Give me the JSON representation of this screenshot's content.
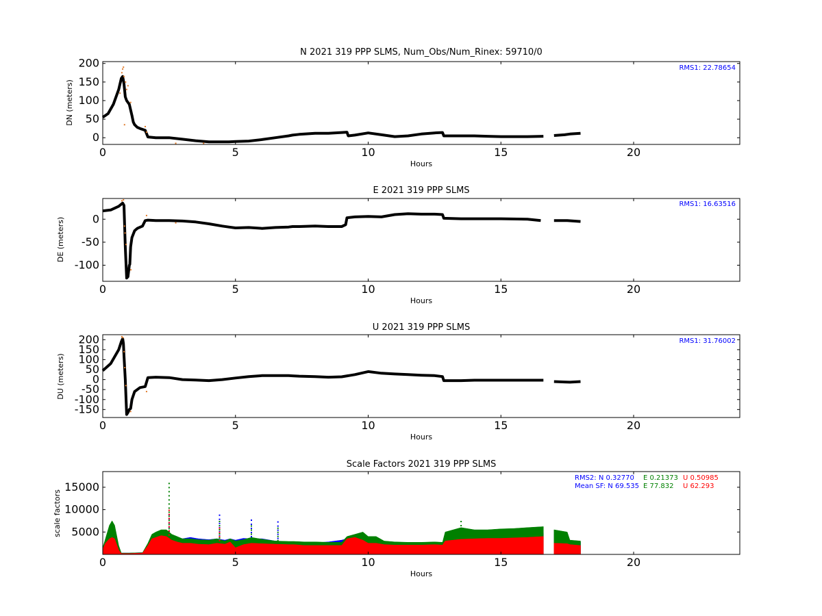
{
  "figure": {
    "background": "#ffffff"
  },
  "chart_data": [
    {
      "type": "scatter",
      "title": "N 2021 319 PPP  SLMS, Num_Obs/Num_Rinex: 59710/0",
      "xlabel": "Hours",
      "ylabel": "DN (meters)",
      "xlim": [
        0,
        24
      ],
      "ylim": [
        -18,
        205
      ],
      "xticks": [
        0,
        5,
        10,
        15,
        20
      ],
      "yticks": [
        0,
        50,
        100,
        150,
        200
      ],
      "annotations": [
        {
          "text": "RMS1: 22.78654",
          "color": "#0000ff"
        }
      ],
      "series": [
        {
          "role": "position",
          "color": "#000000",
          "x": [
            0,
            0.2,
            0.4,
            0.6,
            0.7,
            0.75,
            0.8,
            0.85,
            0.9,
            1.0,
            1.1,
            1.15,
            1.2,
            1.3,
            1.4,
            1.6,
            1.7,
            2.0,
            2.5,
            3.0,
            3.5,
            4.0,
            4.5,
            4.75,
            5.0,
            5.5,
            6.0,
            6.5,
            7.0,
            7.15,
            7.4,
            8.0,
            8.5,
            9.0,
            9.2,
            9.25,
            9.5,
            10.0,
            10.5,
            11.0,
            11.5,
            12.0,
            12.5,
            12.8,
            12.85,
            13.5,
            14.0,
            14.5,
            15.0,
            15.5,
            16.0,
            16.6,
            16.7,
            17.0,
            17.4,
            17.6,
            18.0
          ],
          "y": [
            55,
            65,
            90,
            130,
            160,
            165,
            145,
            110,
            100,
            90,
            60,
            42,
            35,
            28,
            25,
            20,
            2,
            0,
            0,
            -4,
            -8,
            -11,
            -11,
            -11,
            -10,
            -9,
            -5,
            0,
            5,
            7,
            9,
            12,
            12,
            14,
            15,
            5,
            7,
            13,
            8,
            3,
            5,
            10,
            13,
            14,
            5,
            5,
            5,
            4,
            3,
            3,
            3,
            4,
            null,
            6,
            8,
            10,
            12
          ]
        },
        {
          "role": "outliers",
          "color": "#e07a2a",
          "x": [
            0.65,
            0.72,
            0.75,
            0.78,
            0.8,
            0.82,
            0.86,
            0.9,
            0.95,
            1.05,
            1.6,
            1.65,
            2.75,
            3.8
          ],
          "y": [
            120,
            175,
            185,
            190,
            165,
            35,
            150,
            130,
            140,
            95,
            30,
            15,
            -15,
            -15
          ]
        }
      ]
    },
    {
      "type": "scatter",
      "title": "E 2021 319 PPP  SLMS",
      "xlabel": "Hours",
      "ylabel": "DE (meters)",
      "xlim": [
        0,
        24
      ],
      "ylim": [
        -135,
        45
      ],
      "xticks": [
        0,
        5,
        10,
        15,
        20
      ],
      "yticks": [
        -100,
        -50,
        0
      ],
      "annotations": [
        {
          "text": "RMS1: 16.63516",
          "color": "#0000ff"
        }
      ],
      "series": [
        {
          "role": "position",
          "color": "#000000",
          "x": [
            0,
            0.3,
            0.6,
            0.75,
            0.8,
            0.85,
            0.9,
            0.95,
            1.0,
            1.02,
            1.05,
            1.1,
            1.2,
            1.3,
            1.5,
            1.6,
            1.7,
            2.0,
            2.5,
            3.0,
            3.5,
            4.0,
            4.5,
            4.75,
            5.0,
            5.5,
            6.0,
            6.5,
            7.0,
            7.15,
            7.4,
            8.0,
            8.5,
            9.0,
            9.15,
            9.2,
            9.5,
            10.0,
            10.5,
            11.0,
            11.5,
            12.0,
            12.5,
            12.8,
            12.85,
            13.5,
            14.0,
            15.0,
            16.0,
            16.5,
            16.7,
            17.0,
            17.5,
            18.0
          ],
          "y": [
            18,
            20,
            28,
            35,
            30,
            -60,
            -128,
            -125,
            -100,
            -98,
            -60,
            -40,
            -25,
            -20,
            -15,
            -3,
            -2,
            -3,
            -3,
            -4,
            -6,
            -10,
            -15,
            -17,
            -19,
            -18,
            -20,
            -18,
            -17,
            -16,
            -16,
            -15,
            -16,
            -16,
            -12,
            3,
            5,
            6,
            5,
            10,
            12,
            11,
            11,
            10,
            2,
            1,
            1,
            1,
            0,
            -3,
            null,
            -3,
            -3,
            -5
          ]
        },
        {
          "role": "outliers",
          "color": "#e07a2a",
          "x": [
            0.72,
            0.78,
            0.82,
            0.84,
            0.88,
            1.06,
            1.65,
            2.75
          ],
          "y": [
            40,
            42,
            -15,
            -30,
            -55,
            -110,
            8,
            -8
          ]
        }
      ]
    },
    {
      "type": "scatter",
      "title": "U 2021 319 PPP  SLMS",
      "xlabel": "Hours",
      "ylabel": "DU (meters)",
      "xlim": [
        0,
        24
      ],
      "ylim": [
        -190,
        225
      ],
      "xticks": [
        0,
        5,
        10,
        15,
        20
      ],
      "yticks": [
        -150,
        -100,
        -50,
        0,
        50,
        100,
        150,
        200
      ],
      "annotations": [
        {
          "text": "RMS1: 31.76002",
          "color": "#0000ff"
        }
      ],
      "series": [
        {
          "role": "position",
          "color": "#000000",
          "x": [
            0,
            0.3,
            0.6,
            0.7,
            0.75,
            0.78,
            0.8,
            0.85,
            0.9,
            0.95,
            1.0,
            1.05,
            1.1,
            1.2,
            1.4,
            1.6,
            1.7,
            2.0,
            2.5,
            3.0,
            3.5,
            4.0,
            4.5,
            5.0,
            5.5,
            6.0,
            6.5,
            7.0,
            7.15,
            7.4,
            8.0,
            8.5,
            9.0,
            9.5,
            10.0,
            10.5,
            11.0,
            11.5,
            12.0,
            12.5,
            12.8,
            12.85,
            13.5,
            14.0,
            15.0,
            16.0,
            16.6,
            16.7,
            17.0,
            17.4,
            17.6,
            18.0
          ],
          "y": [
            45,
            80,
            150,
            190,
            205,
            180,
            120,
            0,
            -175,
            -165,
            -150,
            -145,
            -100,
            -60,
            -40,
            -35,
            10,
            12,
            10,
            0,
            -2,
            -5,
            0,
            8,
            15,
            20,
            20,
            20,
            19,
            17,
            15,
            12,
            14,
            25,
            40,
            32,
            28,
            25,
            22,
            20,
            15,
            -5,
            -5,
            -3,
            -3,
            -3,
            -3,
            null,
            -10,
            -12,
            -13,
            -10
          ]
        },
        {
          "role": "outliers",
          "color": "#e07a2a",
          "x": [
            0.72,
            0.76,
            0.8,
            0.83,
            0.87,
            1.05,
            1.65
          ],
          "y": [
            215,
            210,
            140,
            60,
            -30,
            -160,
            -60
          ]
        }
      ]
    },
    {
      "type": "scatter",
      "title": "Scale Factors 2021 319 PPP  SLMS",
      "xlabel": "Hours",
      "ylabel": "scale factors",
      "xlim": [
        0,
        24
      ],
      "ylim": [
        0,
        18500
      ],
      "xticks": [
        0,
        5,
        10,
        15,
        20
      ],
      "yticks": [
        5000,
        10000,
        15000
      ],
      "annotations": [
        {
          "text": "RMS2: N  0.32770",
          "color": "#0000ff"
        },
        {
          "text": "E  0.21373",
          "color": "#008000"
        },
        {
          "text": "U  0.50985",
          "color": "#ff0000"
        },
        {
          "text": "Mean SF: N  69.535",
          "color": "#0000ff"
        },
        {
          "text": "E  77.832",
          "color": "#008000"
        },
        {
          "text": "U  62.293",
          "color": "#ff0000"
        }
      ],
      "band_x": [
        0,
        0.1,
        0.25,
        0.35,
        0.45,
        0.6,
        0.7,
        1.0,
        1.5,
        1.7,
        1.85,
        2.0,
        2.2,
        2.4,
        2.6,
        2.8,
        3.0,
        3.3,
        3.6,
        4.0,
        4.3,
        4.6,
        4.8,
        5.0,
        5.3,
        5.6,
        6.0,
        6.5,
        7.0,
        7.2,
        7.6,
        8.0,
        8.5,
        9.0,
        9.2,
        9.5,
        9.8,
        10.0,
        10.3,
        10.6,
        11.0,
        11.5,
        12.0,
        12.5,
        12.8,
        12.9,
        13.5,
        14.0,
        14.5,
        15.0,
        15.5,
        16.0,
        16.6,
        16.7,
        17.0,
        17.5,
        17.6,
        18.0
      ],
      "series": [
        {
          "name": "N",
          "color": "#0000ff",
          "upper": [
            1000,
            2500,
            4000,
            5000,
            4500,
            1500,
            300,
            300,
            400,
            1500,
            3000,
            3500,
            4500,
            4500,
            4000,
            3800,
            3500,
            3800,
            3500,
            3300,
            3500,
            3200,
            3500,
            3200,
            3600,
            3500,
            3500,
            3000,
            2800,
            2800,
            2600,
            2600,
            2800,
            3200,
            3500,
            3800,
            3600,
            3200,
            3000,
            2600,
            2600,
            2600,
            2600,
            2600,
            2700,
            3200,
            4000,
            4200,
            4200,
            4300,
            4500,
            4700,
            4800,
            null,
            4600,
            4500,
            3000,
            2800
          ],
          "spikes": [
            [
              2.5,
              9000
            ],
            [
              4.4,
              8900
            ],
            [
              5.6,
              7800
            ],
            [
              6.6,
              7400
            ]
          ]
        },
        {
          "name": "E",
          "color": "#008000",
          "upper": [
            1500,
            3500,
            6500,
            7500,
            6500,
            2000,
            300,
            300,
            400,
            2500,
            4500,
            5000,
            5500,
            5500,
            4500,
            4000,
            3500,
            3500,
            3300,
            3200,
            3500,
            3000,
            3500,
            3000,
            3300,
            3800,
            3400,
            3000,
            2900,
            2900,
            2800,
            2800,
            2700,
            2700,
            4000,
            4500,
            5000,
            4000,
            4000,
            3000,
            2800,
            2700,
            2700,
            2800,
            2700,
            5000,
            6000,
            5500,
            5500,
            5700,
            5800,
            6000,
            6200,
            null,
            5500,
            5000,
            3200,
            3000
          ],
          "spikes": [
            [
              2.5,
              16000
            ],
            [
              4.4,
              7500
            ],
            [
              5.6,
              6500
            ],
            [
              6.6,
              6000
            ],
            [
              13.5,
              7500
            ]
          ]
        },
        {
          "name": "U",
          "color": "#ff0000",
          "upper": [
            1200,
            2500,
            3500,
            3800,
            3500,
            1000,
            200,
            200,
            300,
            2000,
            3500,
            3800,
            4200,
            4000,
            3200,
            2800,
            2500,
            2500,
            2300,
            2200,
            2500,
            2300,
            2800,
            1500,
            2200,
            2500,
            2400,
            2300,
            2200,
            2200,
            2000,
            2000,
            2000,
            2000,
            3500,
            3800,
            3200,
            2500,
            2500,
            2200,
            2100,
            2100,
            2100,
            2200,
            2100,
            3000,
            3400,
            3500,
            3600,
            3600,
            3700,
            3800,
            4000,
            null,
            2500,
            2400,
            2200,
            2000
          ],
          "spikes": [
            [
              2.5,
              10000
            ],
            [
              4.4,
              6000
            ]
          ]
        }
      ]
    }
  ]
}
